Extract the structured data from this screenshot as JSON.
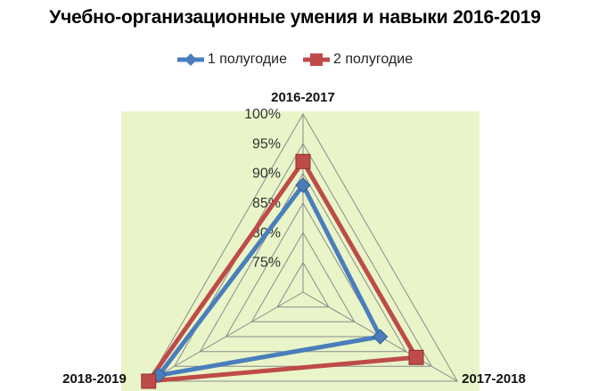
{
  "chart_data": {
    "type": "radar",
    "title": "Учебно-организационные умения и навыки 2016-2019",
    "categories": [
      "2016-2017",
      "2017-2018",
      "2018-2019"
    ],
    "rlim": [
      70,
      100
    ],
    "ticks": [
      "75%",
      "80%",
      "85%",
      "90%",
      "95%",
      "100%"
    ],
    "tick_values": [
      75,
      80,
      85,
      90,
      95,
      100
    ],
    "series": [
      {
        "name": "1 полугодие",
        "values": [
          88,
          85,
          98
        ],
        "color": "#4a7ebb",
        "marker": "diamond"
      },
      {
        "name": "2 полугодие",
        "values": [
          92,
          92,
          100
        ],
        "color": "#be4b48",
        "marker": "square"
      }
    ],
    "plot_area_color": "#e9f5c9",
    "grid": true,
    "legend_position": "top"
  }
}
